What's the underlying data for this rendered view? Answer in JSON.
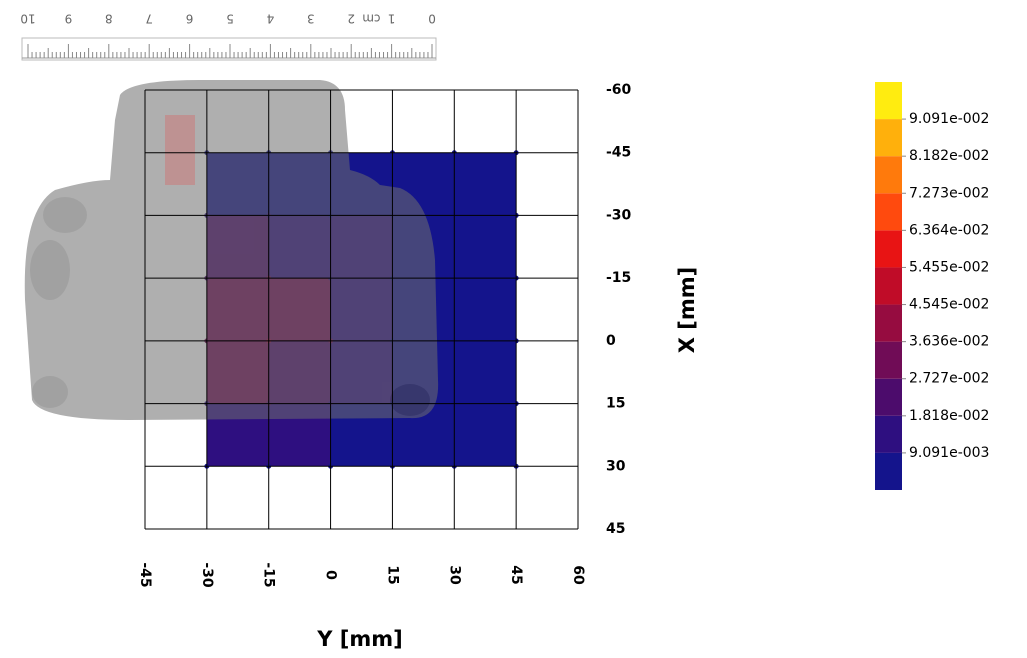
{
  "chart_data": {
    "type": "contour",
    "xlabel": "Y [mm]",
    "ylabel": "X [mm]",
    "xlim": [
      -45,
      60
    ],
    "ylim": [
      -60,
      45
    ],
    "xticks": [
      -45,
      -30,
      -15,
      0,
      15,
      30,
      45,
      60
    ],
    "yticks": [
      -60,
      -45,
      -30,
      -15,
      0,
      15,
      30,
      45
    ],
    "y_inverted": true,
    "grid": true,
    "x": [
      -30,
      -15,
      0,
      15,
      30,
      45
    ],
    "y": [
      -45,
      -30,
      -15,
      0,
      15,
      30
    ],
    "z": [
      [
        0.004,
        0.004,
        0.003,
        0.002,
        0.001,
        0.001
      ],
      [
        0.012,
        0.012,
        0.008,
        0.004,
        0.002,
        0.001
      ],
      [
        0.025,
        0.03,
        0.018,
        0.007,
        0.003,
        0.001
      ],
      [
        0.03,
        0.045,
        0.03,
        0.008,
        0.003,
        0.001
      ],
      [
        0.015,
        0.02,
        0.012,
        0.005,
        0.002,
        0.001
      ],
      [
        0.004,
        0.006,
        0.004,
        0.002,
        0.001,
        0.001
      ]
    ],
    "colorbar": {
      "clim": [
        0,
        0.1
      ],
      "colors": [
        "#14148c",
        "#2e0f80",
        "#4c0c6c",
        "#700c56",
        "#960c40",
        "#c00c28",
        "#e81414",
        "#ff4a0e",
        "#ff7a0c",
        "#ffb00c",
        "#ffec10"
      ],
      "ticks": [
        {
          "value": 0.009091,
          "label": "9.091e-003"
        },
        {
          "value": 0.01818,
          "label": "1.818e-002"
        },
        {
          "value": 0.02727,
          "label": "2.727e-002"
        },
        {
          "value": 0.03636,
          "label": "3.636e-002"
        },
        {
          "value": 0.04545,
          "label": "4.545e-002"
        },
        {
          "value": 0.05455,
          "label": "5.455e-002"
        },
        {
          "value": 0.06364,
          "label": "6.364e-002"
        },
        {
          "value": 0.07273,
          "label": "7.273e-002"
        },
        {
          "value": 0.08182,
          "label": "8.182e-002"
        },
        {
          "value": 0.09091,
          "label": "9.091e-002"
        }
      ]
    },
    "ruler_labels": [
      "10",
      "9",
      "8",
      "7",
      "6",
      "5",
      "4",
      "3",
      "2",
      "1",
      "0"
    ],
    "ruler_unit": "cm"
  }
}
